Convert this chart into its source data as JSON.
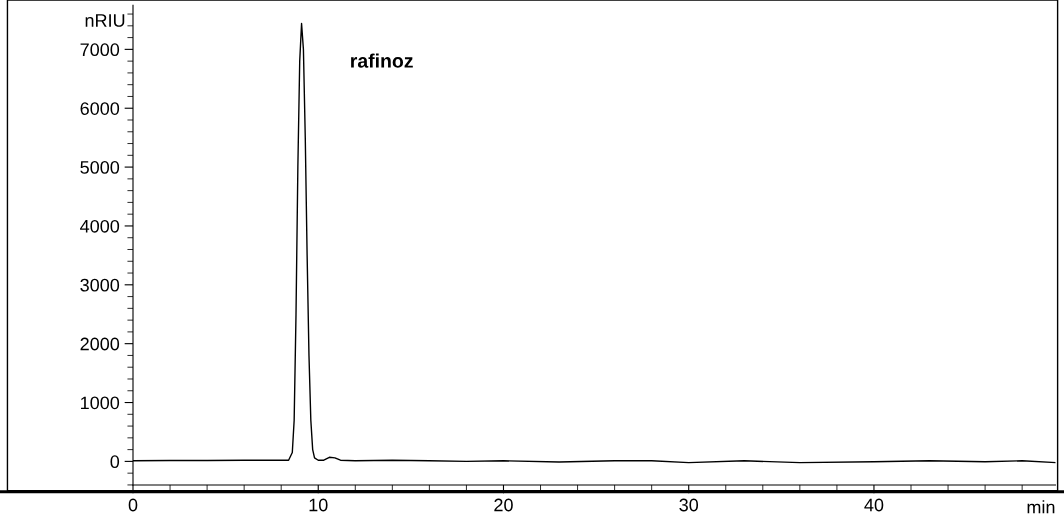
{
  "chart_data": {
    "type": "line",
    "xlabel": "min",
    "ylabel": "nRIU",
    "annotations": [
      "rafinoz"
    ],
    "x": [
      0,
      2,
      4,
      6,
      8,
      8.4,
      8.6,
      8.7,
      8.8,
      8.9,
      9.0,
      9.1,
      9.2,
      9.3,
      9.4,
      9.5,
      9.6,
      9.7,
      9.8,
      10.0,
      10.3,
      10.6,
      10.9,
      11.2,
      12,
      14,
      16,
      18,
      20,
      23,
      26,
      28,
      30,
      33,
      36,
      40,
      43,
      46,
      48,
      49.8
    ],
    "series": [
      {
        "color": "#000000",
        "values": [
          10,
          15,
          15,
          20,
          20,
          20,
          150,
          700,
          2500,
          5000,
          6800,
          7440,
          7000,
          5500,
          3500,
          1800,
          700,
          200,
          60,
          20,
          20,
          70,
          60,
          20,
          10,
          20,
          10,
          0,
          10,
          -10,
          10,
          10,
          -20,
          10,
          -20,
          -5,
          10,
          -5,
          10,
          -20
        ]
      }
    ],
    "xlim": [
      0,
      49.8
    ],
    "xticks": [
      0,
      10,
      20,
      30,
      40
    ],
    "ylim": [
      -400,
      7750
    ],
    "yticks": [
      0,
      1000,
      2000,
      3000,
      4000,
      5000,
      6000,
      7000
    ],
    "grid": false,
    "legend": false,
    "marker": "none",
    "line_style": "solid"
  }
}
